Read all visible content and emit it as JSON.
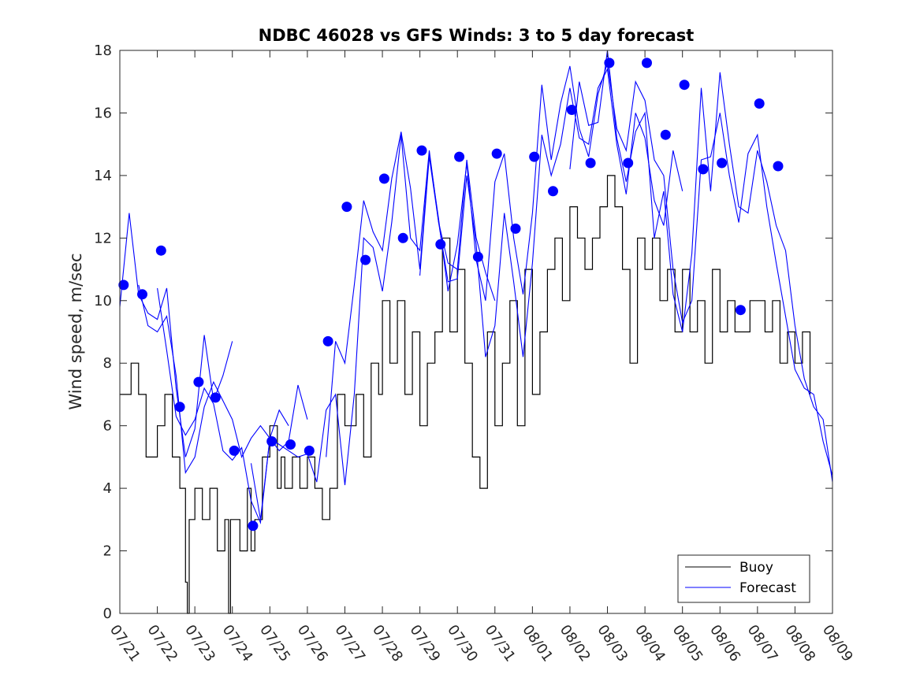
{
  "chart_data": {
    "type": "line",
    "title": "NDBC 46028 vs GFS Winds: 3 to 5 day forecast",
    "xlabel": "",
    "ylabel": "Wind speed, m/sec",
    "xlim": [
      "07/21",
      "08/09"
    ],
    "ylim": [
      0,
      18
    ],
    "y_ticks": [
      0,
      2,
      4,
      6,
      8,
      10,
      12,
      14,
      16,
      18
    ],
    "x_ticks": [
      "07/21",
      "07/22",
      "07/23",
      "07/24",
      "07/25",
      "07/26",
      "07/27",
      "07/28",
      "07/29",
      "07/30",
      "07/31",
      "08/01",
      "08/02",
      "08/03",
      "08/04",
      "08/05",
      "08/06",
      "08/07",
      "08/08",
      "08/09"
    ],
    "grid": false,
    "legend_position": "bottom-right",
    "legend": [
      "Buoy",
      "Forecast"
    ],
    "colors": {
      "buoy": "#000000",
      "forecast": "#0000ff",
      "markers": "#0000ff"
    },
    "series": [
      {
        "name": "Buoy",
        "x_days": [
          0.0,
          0.3,
          0.5,
          0.7,
          1.0,
          1.2,
          1.4,
          1.6,
          1.75,
          1.8,
          1.85,
          2.0,
          2.2,
          2.4,
          2.6,
          2.8,
          2.9,
          2.95,
          3.0,
          3.2,
          3.4,
          3.5,
          3.6,
          3.8,
          4.0,
          4.2,
          4.3,
          4.4,
          4.6,
          4.8,
          5.0,
          5.2,
          5.4,
          5.6,
          5.8,
          6.0,
          6.3,
          6.5,
          6.7,
          6.9,
          7.0,
          7.2,
          7.4,
          7.6,
          7.8,
          8.0,
          8.2,
          8.4,
          8.6,
          8.8,
          9.0,
          9.2,
          9.4,
          9.6,
          9.8,
          10.0,
          10.2,
          10.4,
          10.6,
          10.8,
          11.0,
          11.2,
          11.4,
          11.6,
          11.8,
          12.0,
          12.2,
          12.4,
          12.6,
          12.8,
          13.0,
          13.2,
          13.4,
          13.6,
          13.8,
          14.0,
          14.2,
          14.4,
          14.6,
          14.8,
          15.0,
          15.2,
          15.4,
          15.6,
          15.8,
          16.0,
          16.2,
          16.4,
          16.6,
          16.8,
          17.0,
          17.2,
          17.4,
          17.6,
          17.8,
          18.0,
          18.2,
          18.4
        ],
        "values": [
          7,
          8,
          7,
          5,
          6,
          7,
          5,
          4,
          1,
          0,
          3,
          4,
          3,
          4,
          2,
          3,
          0,
          3,
          3,
          2,
          4,
          2,
          3,
          5,
          6,
          4,
          5,
          4,
          5,
          4,
          5,
          4,
          3,
          4,
          7,
          6,
          7,
          5,
          8,
          7,
          10,
          8,
          10,
          7,
          9,
          6,
          8,
          9,
          12,
          9,
          11,
          8,
          5,
          4,
          9,
          6,
          8,
          10,
          6,
          11,
          7,
          9,
          11,
          12,
          10,
          13,
          12,
          11,
          12,
          13,
          14,
          13,
          11,
          8,
          12,
          11,
          12,
          10,
          11,
          9,
          11,
          9,
          10,
          8,
          11,
          9,
          10,
          9,
          9,
          10,
          10,
          9,
          10,
          8,
          9,
          8,
          9,
          7
        ]
      },
      {
        "name": "Forecast",
        "runs": [
          {
            "x_days": [
              0.0,
              0.25,
              0.5,
              0.75,
              1.0,
              1.25,
              1.5,
              1.75,
              2.0,
              2.25,
              2.5,
              2.75,
              3.0
            ],
            "values": [
              9.8,
              12.8,
              10.2,
              9.6,
              9.4,
              10.4,
              7.2,
              5.0,
              5.9,
              8.9,
              6.8,
              7.6,
              8.7
            ]
          },
          {
            "x_days": [
              0.5,
              0.75,
              1.0,
              1.25,
              1.5,
              1.75,
              2.0,
              2.25,
              2.5,
              2.75,
              3.0,
              3.25,
              3.5,
              3.75,
              4.0,
              4.25,
              4.5
            ],
            "values": [
              10.5,
              9.2,
              9.0,
              9.5,
              7.6,
              4.5,
              5.0,
              6.6,
              7.4,
              6.8,
              6.2,
              5.0,
              5.6,
              6.0,
              5.6,
              6.5,
              6.0
            ]
          },
          {
            "x_days": [
              1.0,
              1.25,
              1.5,
              1.75,
              2.0,
              2.25,
              2.5,
              2.75,
              3.0,
              3.25,
              3.5,
              3.75,
              4.0,
              4.25,
              4.5,
              4.75,
              5.0
            ],
            "values": [
              10.4,
              8.4,
              6.3,
              5.7,
              6.2,
              7.2,
              6.7,
              5.2,
              4.9,
              5.3,
              3.6,
              2.9,
              5.6,
              5.2,
              5.5,
              7.3,
              6.2
            ]
          },
          {
            "x_days": [
              3.5,
              3.75,
              4.0,
              4.25,
              4.5,
              4.75,
              5.0,
              5.25,
              5.5,
              5.75,
              6.0,
              6.25,
              6.5,
              6.75,
              7.0,
              7.25,
              7.5,
              7.75,
              8.0,
              8.25,
              8.5,
              8.75,
              9.0,
              9.25,
              9.5,
              9.75,
              10.0
            ],
            "values": [
              4.8,
              3.0,
              5.6,
              5.4,
              5.2,
              5.0,
              5.1,
              4.2,
              6.5,
              7.0,
              4.1,
              7.0,
              12.0,
              11.7,
              10.3,
              12.5,
              15.3,
              12.0,
              11.6,
              14.8,
              12.5,
              11.2,
              11.0,
              14.5,
              12.0,
              10.9,
              10.0
            ]
          },
          {
            "x_days": [
              5.5,
              5.75,
              6.0,
              6.25,
              6.5,
              6.75,
              7.0,
              7.25,
              7.5,
              7.75,
              8.0,
              8.25,
              8.5,
              8.75,
              9.0,
              9.25,
              9.5,
              9.75,
              10.0,
              10.25,
              10.5,
              10.75,
              11.0,
              11.25,
              11.5,
              11.75,
              12.0,
              12.25,
              12.5,
              12.75,
              13.0
            ],
            "values": [
              5.0,
              8.7,
              8.0,
              10.5,
              13.2,
              12.2,
              11.6,
              13.9,
              15.4,
              13.6,
              11.0,
              14.7,
              12.6,
              10.3,
              11.8,
              14.4,
              11.3,
              10.0,
              13.8,
              14.7,
              12.0,
              10.2,
              12.8,
              16.9,
              14.5,
              16.3,
              17.5,
              15.5,
              14.6,
              16.6,
              17.6
            ]
          },
          {
            "x_days": [
              8.0,
              8.25,
              8.5,
              8.75,
              9.0,
              9.25,
              9.5,
              9.75,
              10.0,
              10.25,
              10.5,
              10.75,
              11.0,
              11.25,
              11.5,
              11.75,
              12.0,
              12.25,
              12.5,
              12.75,
              13.0,
              13.25,
              13.5,
              13.75,
              14.0,
              14.25,
              14.5,
              14.75,
              15.0
            ],
            "values": [
              10.8,
              14.6,
              12.5,
              10.6,
              10.7,
              14.0,
              11.8,
              8.2,
              9.2,
              12.8,
              10.6,
              8.2,
              11.2,
              15.3,
              14.0,
              15.0,
              16.8,
              15.2,
              15.0,
              16.8,
              17.4,
              15.0,
              13.4,
              16.0,
              15.2,
              13.2,
              12.4,
              14.8,
              13.5
            ]
          },
          {
            "x_days": [
              12.0,
              12.25,
              12.5,
              12.75,
              13.0,
              13.25,
              13.5,
              13.75,
              14.0,
              14.25,
              14.5,
              14.75,
              15.0,
              15.25,
              15.5,
              15.75,
              16.0,
              16.25,
              16.5,
              16.75,
              17.0,
              17.25,
              17.5,
              17.75,
              18.0,
              18.25,
              18.5,
              18.75,
              19.0
            ],
            "values": [
              14.2,
              17.0,
              15.6,
              15.7,
              18.0,
              15.2,
              13.8,
              15.4,
              16.0,
              12.0,
              13.5,
              10.2,
              9.0,
              11.5,
              16.8,
              13.5,
              17.3,
              15.0,
              13.0,
              12.8,
              14.8,
              13.8,
              12.4,
              11.6,
              9.2,
              7.5,
              6.6,
              6.2,
              4.2
            ]
          },
          {
            "x_days": [
              13.0,
              13.25,
              13.5,
              13.75,
              14.0,
              14.25,
              14.5,
              14.75,
              15.0,
              15.25,
              15.5,
              15.75,
              16.0,
              16.25,
              16.5,
              16.75,
              17.0,
              17.25,
              17.5,
              17.75,
              18.0,
              18.25,
              18.5,
              18.75,
              19.0
            ],
            "values": [
              17.6,
              15.5,
              14.8,
              17.0,
              16.4,
              14.5,
              14.0,
              11.0,
              9.3,
              10.0,
              14.5,
              14.6,
              16.0,
              14.0,
              12.5,
              14.7,
              15.3,
              13.0,
              11.2,
              9.5,
              7.8,
              7.2,
              7.0,
              5.5,
              4.4
            ]
          }
        ]
      },
      {
        "name": "",
        "marker": "filled-circle",
        "x_days": [
          0.1,
          0.6,
          1.1,
          1.6,
          2.1,
          2.55,
          3.05,
          3.55,
          4.05,
          4.55,
          5.05,
          5.55,
          6.05,
          6.55,
          7.05,
          7.55,
          8.05,
          8.55,
          9.05,
          9.55,
          10.05,
          10.55,
          11.05,
          11.55,
          12.05,
          12.55,
          13.05,
          13.55,
          14.05,
          14.55,
          15.05,
          15.55,
          16.05,
          16.55,
          17.05,
          17.55
        ],
        "values": [
          10.5,
          10.2,
          11.6,
          6.6,
          7.4,
          6.9,
          5.2,
          2.8,
          5.5,
          5.4,
          5.2,
          8.7,
          13.0,
          11.3,
          13.9,
          12.0,
          14.8,
          11.8,
          14.6,
          11.4,
          14.7,
          12.3,
          14.6,
          13.5,
          16.1,
          14.4,
          17.6,
          14.4,
          17.6,
          15.3,
          16.9,
          14.2,
          14.4,
          9.7,
          16.3,
          14.3
        ]
      }
    ]
  }
}
